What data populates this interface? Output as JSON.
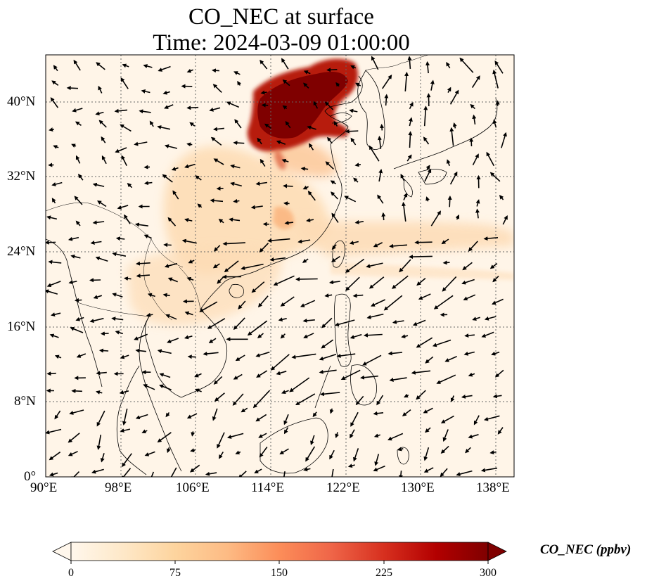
{
  "title": {
    "line1": "CO_NEC at surface",
    "line2": "Time: 2024-03-09 01:00:00"
  },
  "map": {
    "projection": "PlateCarree",
    "lon_range": [
      90,
      140
    ],
    "lat_range": [
      0,
      45
    ],
    "gridlines": true,
    "field": "CO_NEC",
    "colormap": "OrRd",
    "x_ticks": [
      "90°E",
      "98°E",
      "106°E",
      "114°E",
      "122°E",
      "130°E",
      "138°E"
    ],
    "y_ticks": [
      "0°",
      "8°N",
      "16°N",
      "24°N",
      "32°N",
      "40°N"
    ],
    "wind_vectors": true
  },
  "colorbar": {
    "label": "CO_NEC (ppbv)",
    "ticks": [
      "0",
      "75",
      "150",
      "225",
      "300"
    ],
    "range": [
      0,
      300
    ],
    "extend": "both",
    "colors": [
      "#fff7ec",
      "#fee8c8",
      "#fdd49e",
      "#fdbb84",
      "#fc8d59",
      "#ef6548",
      "#d7301f",
      "#b30000",
      "#7f0000"
    ]
  }
}
